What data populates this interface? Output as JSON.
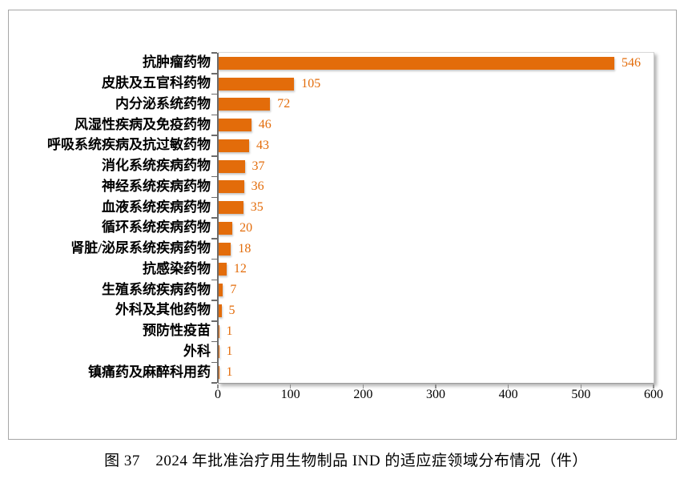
{
  "chart_data": {
    "type": "bar",
    "orientation": "horizontal",
    "title": "",
    "categories": [
      "抗肿瘤药物",
      "皮肤及五官科药物",
      "内分泌系统药物",
      "风湿性疾病及免疫药物",
      "呼吸系统疾病及抗过敏药物",
      "消化系统疾病药物",
      "神经系统疾病药物",
      "血液系统疾病药物",
      "循环系统疾病药物",
      "肾脏/泌尿系统疾病药物",
      "抗感染药物",
      "生殖系统疾病药物",
      "外科及其他药物",
      "预防性疫苗",
      "外科",
      "镇痛药及麻醉科用药"
    ],
    "values": [
      546,
      105,
      72,
      46,
      43,
      37,
      36,
      35,
      20,
      18,
      12,
      7,
      5,
      1,
      1,
      1
    ],
    "xlim": [
      0,
      600
    ],
    "x_ticks": [
      0,
      100,
      200,
      300,
      400,
      500,
      600
    ],
    "grid": "off",
    "legend": "none",
    "bar_color": "#e36c0a",
    "value_label_color": "#e36c0a"
  },
  "caption": "图 37　2024 年批准治疗用生物制品 IND 的适应症领域分布情况（件）"
}
